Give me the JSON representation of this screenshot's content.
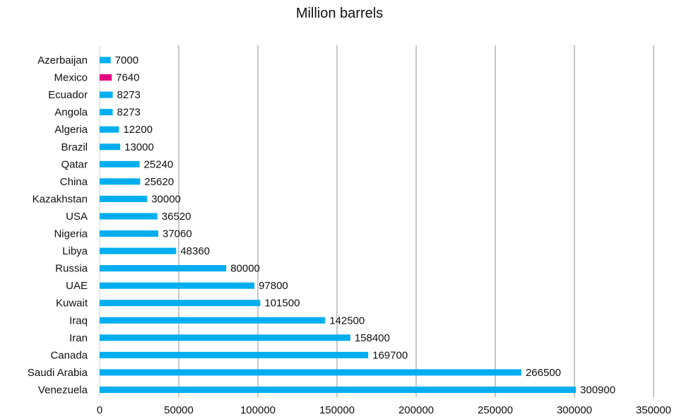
{
  "chart_data": {
    "type": "bar",
    "orientation": "horizontal",
    "title": "Million barrels",
    "categories": [
      "Azerbaijan",
      "Mexico",
      "Ecuador",
      "Angola",
      "Algeria",
      "Brazil",
      "Qatar",
      "China",
      "Kazakhstan",
      "USA",
      "Nigeria",
      "Libya",
      "Russia",
      "UAE",
      "Kuwait",
      "Iraq",
      "Iran",
      "Canada",
      "Saudi Arabia",
      "Venezuela"
    ],
    "values": [
      7000,
      7640,
      8273,
      8273,
      12200,
      13000,
      25240,
      25620,
      30000,
      36520,
      37060,
      48360,
      80000,
      97800,
      101500,
      142500,
      158400,
      169700,
      266500,
      300900
    ],
    "value_labels": [
      "7000",
      "7640",
      "8273",
      "8273",
      "12200",
      "13000",
      "25240",
      "25620",
      "30000",
      "36520",
      "37060",
      "48360",
      "80000",
      "97800",
      "101500",
      "142500",
      "158400",
      "169700",
      "266500",
      "300900"
    ],
    "x_ticks": [
      0,
      50000,
      100000,
      150000,
      200000,
      250000,
      300000,
      350000
    ],
    "x_tick_labels": [
      "0",
      "50000",
      "100000",
      "150000",
      "200000",
      "250000",
      "300000",
      "350000"
    ],
    "xlim": [
      0,
      350000
    ],
    "xlabel": "",
    "ylabel": "",
    "grid": "vertical",
    "colors": {
      "default": "#00AEEF",
      "highlight": "#E6007E",
      "grid": "#C8C8C8"
    },
    "highlight_category": "Mexico"
  }
}
